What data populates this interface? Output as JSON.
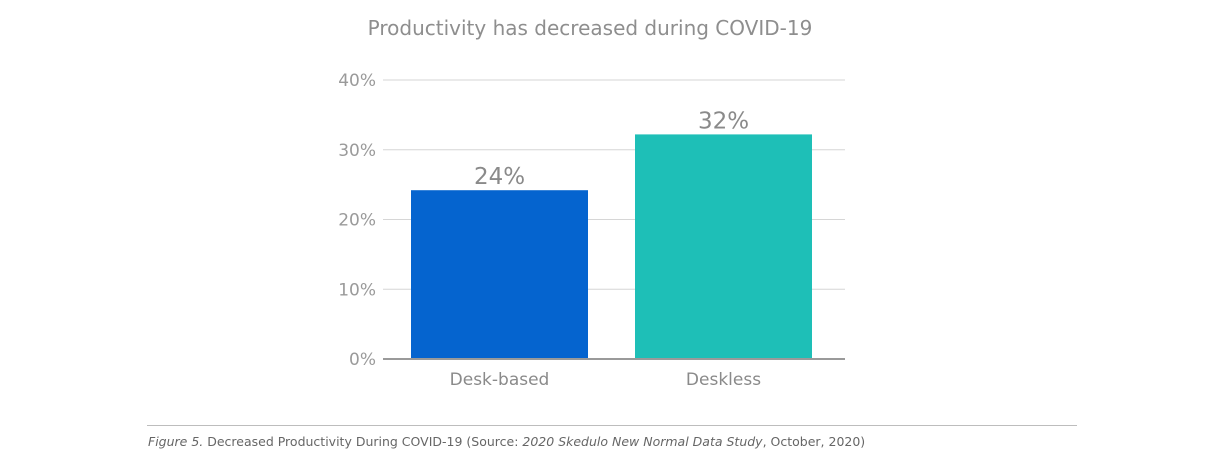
{
  "chart_data": {
    "type": "bar",
    "title": "Productivity has decreased during COVID-19",
    "categories": [
      "Desk-based",
      "Deskless"
    ],
    "values": [
      24.2,
      32.2
    ],
    "data_labels": [
      "24%",
      "32%"
    ],
    "ylim": [
      0,
      40
    ],
    "yticks": [
      0,
      10,
      20,
      30,
      40
    ],
    "ytick_labels": [
      "0%",
      "10%",
      "20%",
      "30%",
      "40%"
    ],
    "grid": true,
    "legend": "none",
    "colors": [
      "#0564cf",
      "#1ebfb7"
    ]
  },
  "caption": {
    "figure_label": "Figure 5.",
    "text_before": " Decreased Productivity During COVID-19 (Source: ",
    "source_title": "2020 Skedulo New Normal Data Study",
    "text_after": ", October, 2020)"
  }
}
